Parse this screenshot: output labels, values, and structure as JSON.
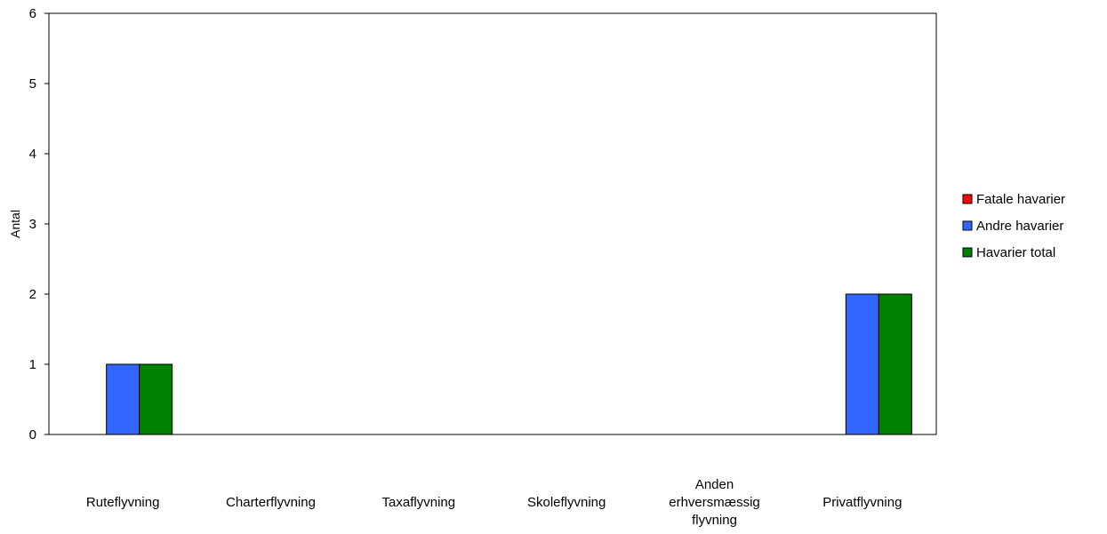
{
  "chart_data": {
    "type": "bar",
    "ylabel": "Antal",
    "ylim": [
      0,
      6
    ],
    "yticks": [
      0,
      1,
      2,
      3,
      4,
      5,
      6
    ],
    "grid": false,
    "legend_position": "right",
    "categories": [
      [
        "Ruteflyvning"
      ],
      [
        "Charterflyvning"
      ],
      [
        "Taxaflyvning"
      ],
      [
        "Skoleflyvning"
      ],
      [
        "Anden",
        "erhversmæssig",
        "flyvning"
      ],
      [
        "Privatflyvning"
      ]
    ],
    "series": [
      {
        "name": "Fatale havarier",
        "color": "#ff0000",
        "values": [
          0,
          0,
          0,
          0,
          0,
          0
        ]
      },
      {
        "name": "Andre havarier",
        "color": "#3366ff",
        "values": [
          1,
          0,
          0,
          0,
          0,
          2
        ]
      },
      {
        "name": "Havarier total",
        "color": "#008000",
        "values": [
          1,
          0,
          0,
          0,
          0,
          2
        ]
      }
    ]
  }
}
